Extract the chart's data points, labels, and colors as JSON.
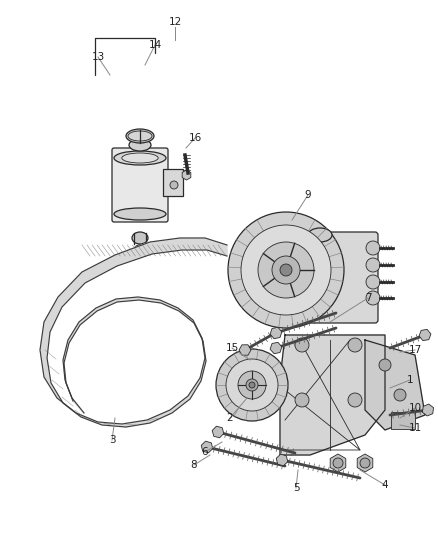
{
  "bg_color": "#ffffff",
  "line_color": "#2a2a2a",
  "fig_width": 4.38,
  "fig_height": 5.33,
  "dpi": 100,
  "label_fs": 7.5,
  "lbl_color": "#222222",
  "leader_color": "#888888",
  "belt_color": "#3a3a3a",
  "part_fill": "#e8e8e8",
  "part_edge": "#2a2a2a",
  "shadow_fill": "#c0c0c0"
}
